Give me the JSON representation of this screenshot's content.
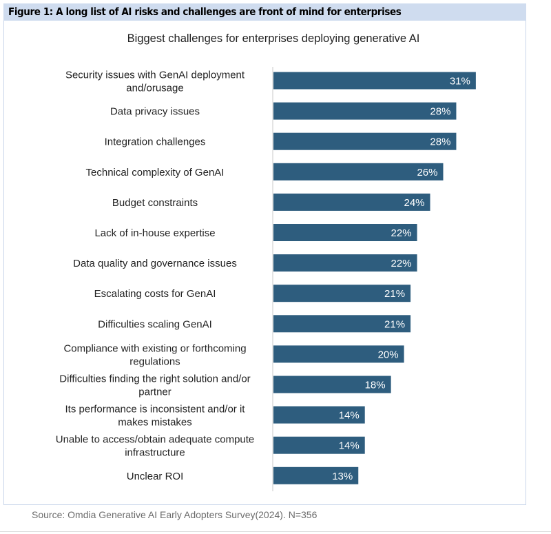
{
  "figure_caption": "Figure 1: A long list of AI risks and challenges are front of mind for enterprises",
  "source": "Source: Omdia Generative AI Early Adopters Survey(2024). N=356",
  "chart_data": {
    "type": "bar",
    "orientation": "horizontal",
    "title": "Biggest challenges for enterprises deploying generative AI",
    "xlabel": "",
    "ylabel": "",
    "grid": false,
    "bar_color": "#2e5d7e",
    "label_color": "#ffffff",
    "categories": [
      [
        "Security issues with GenAI deployment",
        "and/orusage"
      ],
      [
        "Data privacy issues"
      ],
      [
        "Integration challenges"
      ],
      [
        "Technical complexity of GenAI"
      ],
      [
        "Budget constraints"
      ],
      [
        "Lack of in-house expertise"
      ],
      [
        "Data quality and governance issues"
      ],
      [
        "Escalating costs for GenAI"
      ],
      [
        "Difficulties scaling GenAI"
      ],
      [
        "Compliance with existing or forthcoming",
        "regulations"
      ],
      [
        "Difficulties finding the right solution and/or",
        "partner"
      ],
      [
        "Its performance is inconsistent and/or it",
        "makes mistakes"
      ],
      [
        "Unable to access/obtain adequate compute",
        "infrastructure"
      ],
      [
        "Unclear ROI"
      ]
    ],
    "values": [
      31,
      28,
      28,
      26,
      24,
      22,
      22,
      21,
      21,
      20,
      18,
      14,
      14,
      13
    ],
    "data_labels": [
      "31%",
      "28%",
      "28%",
      "26%",
      "24%",
      "22%",
      "22%",
      "21%",
      "21%",
      "20%",
      "18%",
      "14%",
      "14%",
      "13%"
    ]
  }
}
